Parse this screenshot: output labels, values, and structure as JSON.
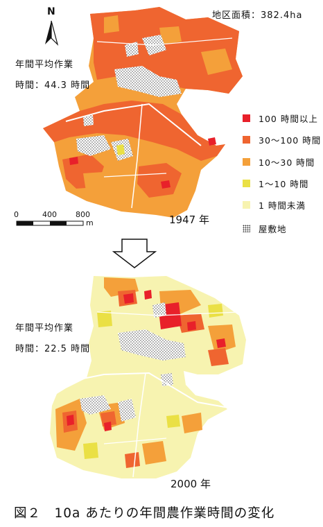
{
  "north_label": "N",
  "area_label": "地区面積：382.4ha",
  "map_1947": {
    "avg_title": "年間平均作業",
    "avg_time": "時間：44.3 時間",
    "year": "1947 年"
  },
  "map_2000": {
    "avg_title": "年間平均作業",
    "avg_time": "時間：22.5 時間",
    "year": "2000 年"
  },
  "scale_bar": {
    "ticks": [
      "0",
      "400",
      "800"
    ],
    "unit": "m"
  },
  "legend": [
    {
      "label": "100 時間以上",
      "color": "#e8202a"
    },
    {
      "label": "30～100 時間",
      "color": "#ef6530"
    },
    {
      "label": "10～30 時間",
      "color": "#f4a03a"
    },
    {
      "label": "1～10 時間",
      "color": "#eae045"
    },
    {
      "label": "1 時間未満",
      "color": "#f7f3b0"
    },
    {
      "label": "屋敷地",
      "pattern": "dotted"
    }
  ],
  "caption": "図２　10a あたりの年間農作業時間の変化"
}
